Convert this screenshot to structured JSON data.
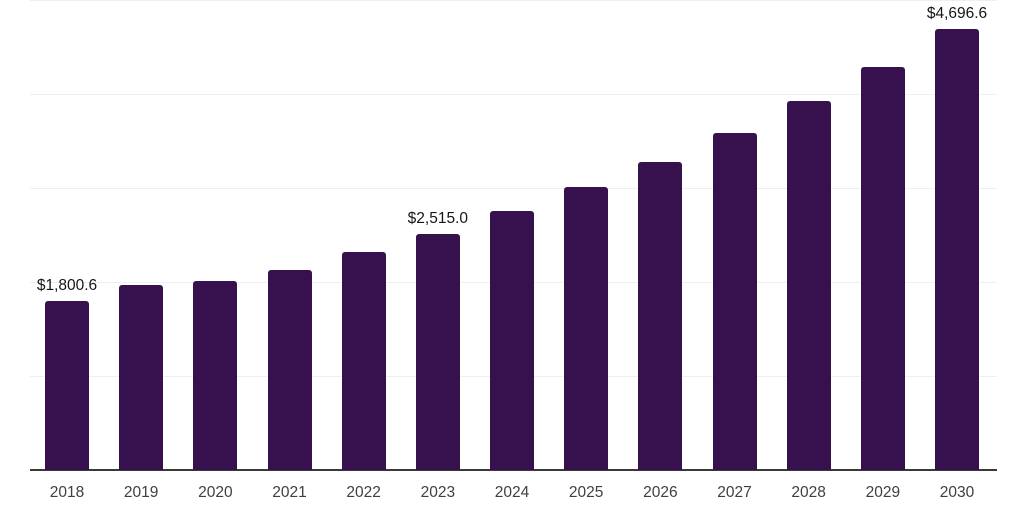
{
  "chart_data": {
    "type": "bar",
    "categories": [
      "2018",
      "2019",
      "2020",
      "2021",
      "2022",
      "2023",
      "2024",
      "2025",
      "2026",
      "2027",
      "2028",
      "2029",
      "2030"
    ],
    "values": [
      1800.6,
      1968,
      2014,
      2131,
      2315,
      2515.0,
      2755,
      3008,
      3280,
      3590,
      3927,
      4290,
      4696.6
    ],
    "data_labels": [
      {
        "category": "2018",
        "text": "$1,800.6"
      },
      {
        "category": "2023",
        "text": "$2,515.0"
      },
      {
        "category": "2030",
        "text": "$4,696.6"
      }
    ],
    "ylim": [
      0,
      5000
    ],
    "gridline_values": [
      1000,
      2000,
      3000,
      4000,
      5000
    ],
    "grid": true,
    "legend": false,
    "bar_color": "#37114d",
    "gridline_color": "#efefef",
    "axis_line_color": "#3a3a3a",
    "tick_label_color": "#3f3f3f",
    "data_label_color": "#161616"
  }
}
